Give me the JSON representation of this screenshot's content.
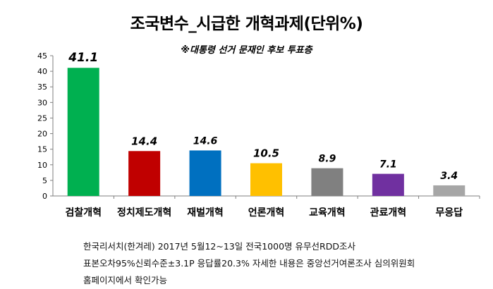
{
  "chart_data": {
    "type": "bar",
    "title": "조국변수_시급한 개혁과제(단위%)",
    "subtitle": "※대통령 선거 문재인 후보 투표층",
    "categories": [
      "검찰개혁",
      "정치제도개혁",
      "재벌개혁",
      "언론개혁",
      "교육개혁",
      "관료개혁",
      "무응답"
    ],
    "values": [
      41.1,
      14.4,
      14.6,
      10.5,
      8.9,
      7.1,
      3.4
    ],
    "value_labels": [
      "41.1",
      "14.4",
      "14.6",
      "10.5",
      "8.9",
      "7.1",
      "3.4"
    ],
    "colors": [
      "#00b050",
      "#c00000",
      "#0070c0",
      "#ffc000",
      "#808080",
      "#7030a0",
      "#a6a6a6"
    ],
    "ylim": [
      0,
      45
    ],
    "yticks": [
      "0",
      "5",
      "10",
      "15",
      "20",
      "25",
      "30",
      "35",
      "40",
      "45"
    ],
    "xlabel": "",
    "ylabel": "",
    "grid": false,
    "legend": "none"
  },
  "notes": [
    "한국리서치(한겨레) 2017년 5월12~13일 전국1000명 유무선RDD조사",
    "표본오차95%신뢰수준±3.1P 응답률20.3% 자세한 내용은 중앙선거여론조사 심의위원회",
    "홈페이지에서 확인가능"
  ]
}
